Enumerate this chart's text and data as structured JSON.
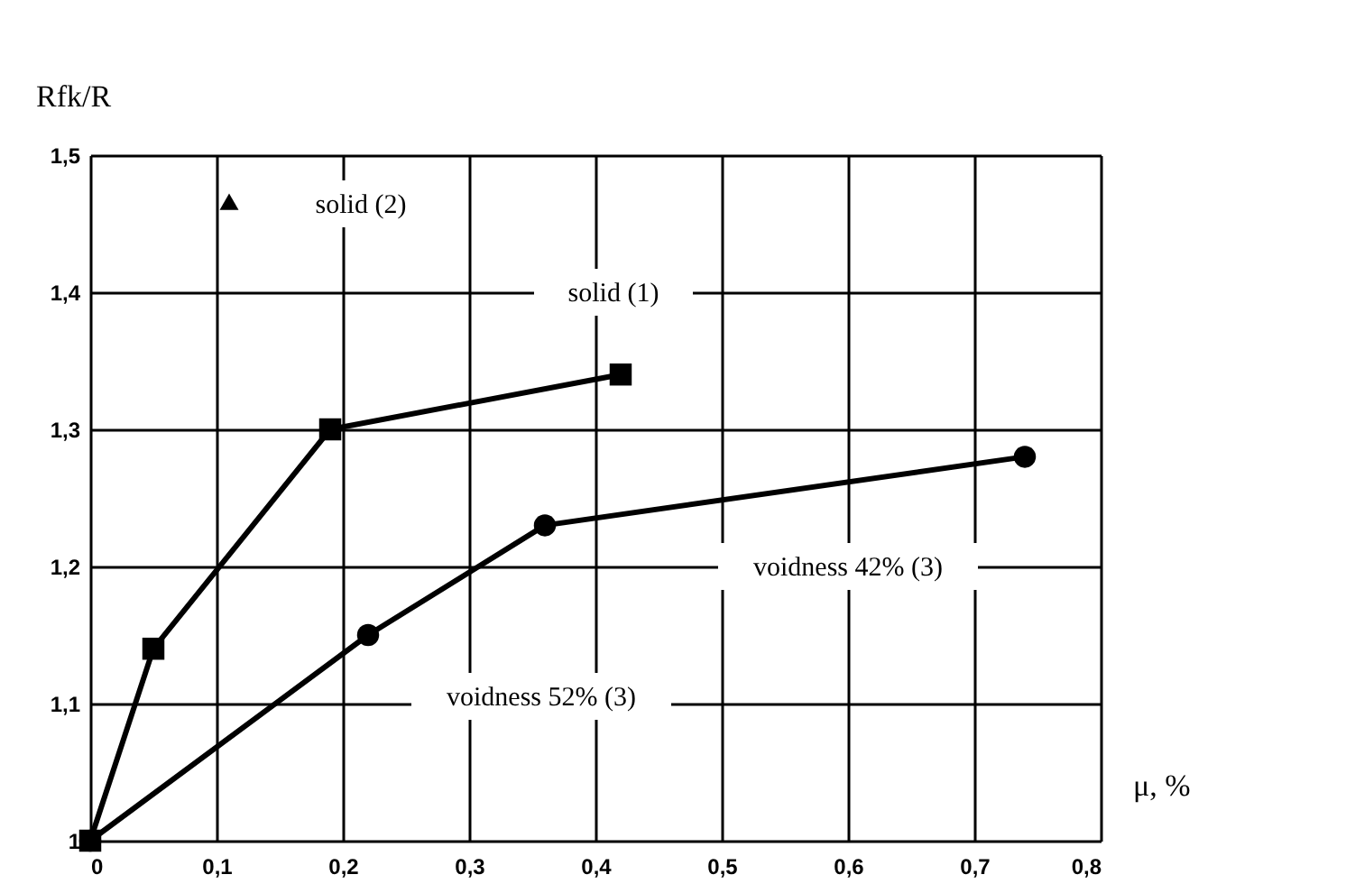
{
  "chart_data": {
    "type": "line",
    "xlabel": "μ, %",
    "ylabel": "Rfk/R",
    "series": [
      {
        "marker": "circle",
        "color": "#000000",
        "x": [
          0,
          0.22,
          0.36,
          0.74
        ],
        "values": [
          1.0,
          1.15,
          1.23,
          1.28
        ]
      },
      {
        "marker": "square",
        "color": "#000000",
        "x": [
          0,
          0.05,
          0.19,
          0.42
        ],
        "values": [
          1.0,
          1.14,
          1.3,
          1.34
        ]
      },
      {
        "type": "scatter",
        "marker": "triangle",
        "color": "#000000",
        "x": [
          0.11
        ],
        "values": [
          1.466
        ]
      }
    ],
    "annotations": [
      "solid (2)",
      "solid (1)",
      "voidness 42% (3)",
      "voidness 52% (3)"
    ],
    "xlim": [
      0,
      0.8
    ],
    "ylim": [
      1,
      1.5
    ],
    "xticks": [
      0,
      {
        "value": 0.1,
        "label": "0,1"
      },
      {
        "value": 0.2,
        "label": "0,2"
      },
      {
        "value": 0.3,
        "label": "0,3"
      },
      {
        "value": 0.4,
        "label": "0,4"
      },
      {
        "value": 0.5,
        "label": "0,5"
      },
      {
        "value": 0.6,
        "label": "0,6"
      },
      {
        "value": 0.7,
        "label": "0,7"
      },
      {
        "value": 0.8,
        "label": "0,8"
      }
    ],
    "yticks": [
      1,
      {
        "value": 1.1,
        "label": "1,1"
      },
      {
        "value": 1.2,
        "label": "1,2"
      },
      {
        "value": 1.3,
        "label": "1,3"
      },
      {
        "value": 1.4,
        "label": "1,4"
      },
      {
        "value": 1.5,
        "label": "1,5"
      }
    ],
    "grid": true,
    "line_style": "solid"
  }
}
